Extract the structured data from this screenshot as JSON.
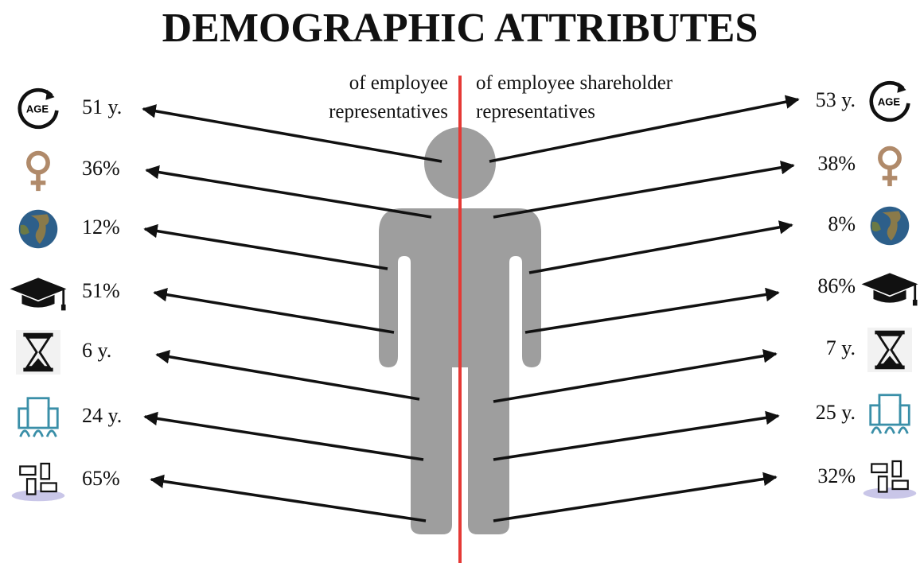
{
  "title": "DEMOGRAPHIC ATTRIBUTES",
  "left_heading": [
    "of employee",
    "representatives"
  ],
  "right_heading": [
    "of employee shareholder",
    "representatives"
  ],
  "rows": [
    {
      "icon_text": "AGE",
      "left": "51 y.",
      "right": "53 y."
    },
    {
      "left": "36%",
      "right": "38%"
    },
    {
      "left": "12%",
      "right": "8%"
    },
    {
      "left": "51%",
      "right": "86%"
    },
    {
      "left": "6 y.",
      "right": "7 y."
    },
    {
      "left": "24 y.",
      "right": "25 y."
    },
    {
      "left": "65%",
      "right": "32%"
    }
  ]
}
